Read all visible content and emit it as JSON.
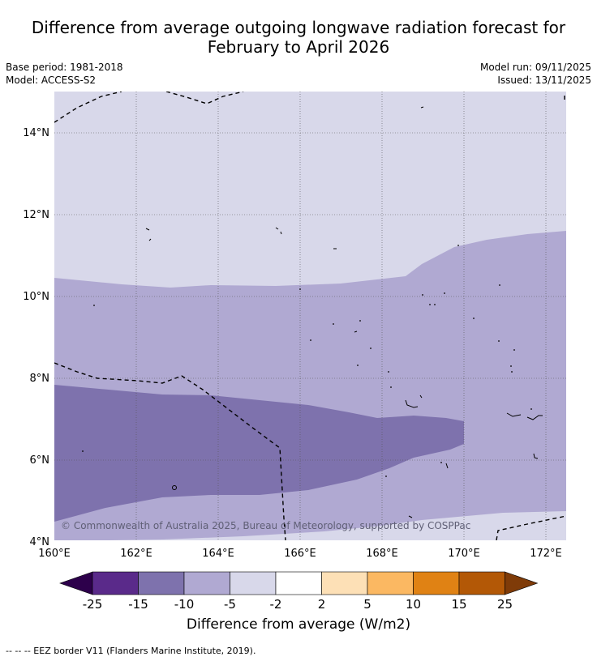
{
  "header": {
    "title_line1": "Difference from average outgoing longwave radiation forecast for",
    "title_line2": "February to April 2026",
    "base_period": "Base period: 1981-2018",
    "model": "Model: ACCESS-S2",
    "model_run": "Model run: 09/11/2025",
    "issued": "Issued: 13/11/2025"
  },
  "map": {
    "x_ticks": [
      "160°E",
      "162°E",
      "164°E",
      "166°E",
      "168°E",
      "170°E",
      "172°E"
    ],
    "y_ticks": [
      "14°N",
      "12°N",
      "10°N",
      "8°N",
      "6°N",
      "4°N"
    ],
    "copyright": "© Commonwealth of Australia 2025, Bureau of Meteorology, supported by COSPPac"
  },
  "colorbar": {
    "title": "Difference from average (W/m2)",
    "labels": [
      "-25",
      "-15",
      "-10",
      "-5",
      "-2",
      "2",
      "5",
      "10",
      "15",
      "25"
    ],
    "colors": [
      "#2d004b",
      "#5a2a8a",
      "#7e72ad",
      "#b0a9d2",
      "#d8d8ea",
      "#ffffff",
      "#fde0b6",
      "#fbb862",
      "#e08214",
      "#b35806",
      "#7f3b08"
    ]
  },
  "legend": {
    "eez_border": "--  --  -- EEZ border V11 (Flanders Marine Institute, 2019)."
  }
}
